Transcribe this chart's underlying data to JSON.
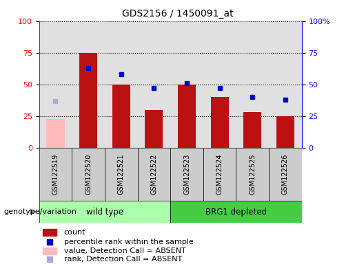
{
  "title": "GDS2156 / 1450091_at",
  "samples": [
    "GSM122519",
    "GSM122520",
    "GSM122521",
    "GSM122522",
    "GSM122523",
    "GSM122524",
    "GSM122525",
    "GSM122526"
  ],
  "count_values": [
    23,
    75,
    50,
    30,
    50,
    40,
    28,
    25
  ],
  "rank_values": [
    37,
    63,
    58,
    47,
    51,
    47,
    40,
    38
  ],
  "absent_flags": [
    true,
    false,
    false,
    false,
    false,
    false,
    false,
    false
  ],
  "bar_color_present": "#bb1111",
  "bar_color_absent": "#ffbbbb",
  "rank_color_present": "#0000cc",
  "rank_color_absent": "#aaaadd",
  "ylim": [
    0,
    100
  ],
  "genotype_label": "genotype/variation",
  "sample_box_color": "#cccccc",
  "wt_color": "#aaffaa",
  "brg_color": "#44cc44",
  "plot_bg_color": "#e0e0e0",
  "bg_color": "#ffffff"
}
